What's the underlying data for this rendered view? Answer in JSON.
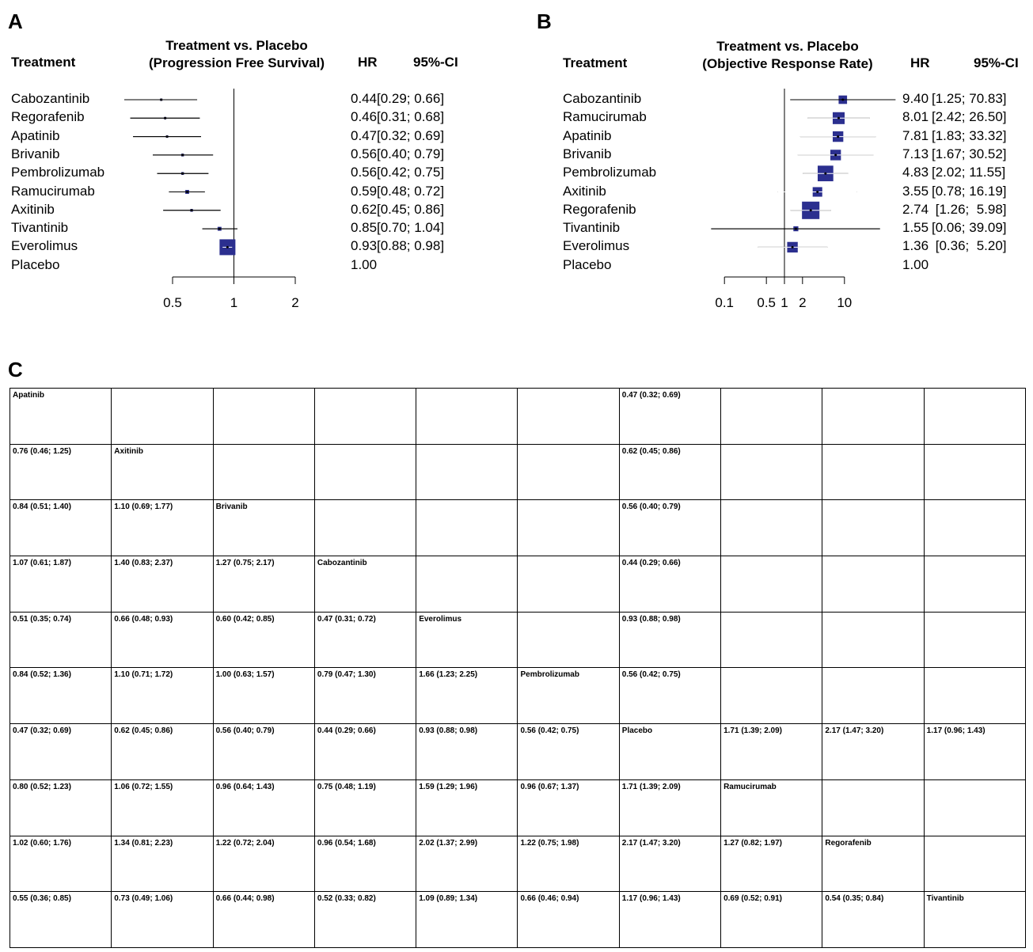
{
  "panels": {
    "A": {
      "letter": "A",
      "col_treatment": "Treatment",
      "col_title_line1": "Treatment vs. Placebo",
      "col_title_line2": "(Progression Free Survival)",
      "col_hr": "HR",
      "col_ci": "95%-CI"
    },
    "B": {
      "letter": "B",
      "col_treatment": "Treatment",
      "col_title_line1": "Treatment vs. Placebo",
      "col_title_line2": "(Objective Response Rate)",
      "col_hr": "HR",
      "col_ci": "95%-CI"
    },
    "C": {
      "letter": "C"
    }
  },
  "chart_data": [
    {
      "type": "forest",
      "scale": "log",
      "axis_ticks": [
        0.5,
        1,
        2
      ],
      "axis_tick_labels": [
        "0.5",
        "1",
        "2"
      ],
      "reference_line": 1,
      "rows": [
        {
          "name": "Cabozantinib",
          "est": 0.44,
          "lo": 0.29,
          "hi": 0.66,
          "weight": 0.02,
          "hr_text": "0.44",
          "ci_text": "[0.29; 0.66]"
        },
        {
          "name": "Regorafenib",
          "est": 0.46,
          "lo": 0.31,
          "hi": 0.68,
          "weight": 0.02,
          "hr_text": "0.46",
          "ci_text": "[0.31; 0.68]"
        },
        {
          "name": "Apatinib",
          "est": 0.47,
          "lo": 0.32,
          "hi": 0.69,
          "weight": 0.02,
          "hr_text": "0.47",
          "ci_text": "[0.32; 0.69]"
        },
        {
          "name": "Brivanib",
          "est": 0.56,
          "lo": 0.4,
          "hi": 0.79,
          "weight": 0.03,
          "hr_text": "0.56",
          "ci_text": "[0.40; 0.79]"
        },
        {
          "name": "Pembrolizumab",
          "est": 0.56,
          "lo": 0.42,
          "hi": 0.75,
          "weight": 0.03,
          "hr_text": "0.56",
          "ci_text": "[0.42; 0.75]"
        },
        {
          "name": "Ramucirumab",
          "est": 0.59,
          "lo": 0.48,
          "hi": 0.72,
          "weight": 0.06,
          "hr_text": "0.59",
          "ci_text": "[0.48; 0.72]"
        },
        {
          "name": "Axitinib",
          "est": 0.62,
          "lo": 0.45,
          "hi": 0.86,
          "weight": 0.03,
          "hr_text": "0.62",
          "ci_text": "[0.45; 0.86]"
        },
        {
          "name": "Tivantinib",
          "est": 0.85,
          "lo": 0.7,
          "hi": 1.04,
          "weight": 0.06,
          "hr_text": "0.85",
          "ci_text": "[0.70; 1.04]"
        },
        {
          "name": "Everolimus",
          "est": 0.93,
          "lo": 0.88,
          "hi": 0.98,
          "weight": 1.0,
          "hr_text": "0.93",
          "ci_text": "[0.88; 0.98]"
        },
        {
          "name": "Placebo",
          "est": null,
          "lo": null,
          "hi": null,
          "weight": 0,
          "hr_text": "1.00",
          "ci_text": ""
        }
      ]
    },
    {
      "type": "forest",
      "scale": "log",
      "axis_ticks": [
        0.1,
        0.5,
        1,
        2,
        10
      ],
      "axis_tick_labels": [
        "0.1",
        "0.5",
        "1",
        "2",
        "10"
      ],
      "reference_line": 1,
      "rows": [
        {
          "name": "Cabozantinib",
          "est": 9.4,
          "lo": 1.25,
          "hi": 70.83,
          "weight": 0.35,
          "hr_text": "9.40",
          "ci_text": "[1.25; 70.83]"
        },
        {
          "name": "Ramucirumab",
          "est": 8.01,
          "lo": 2.42,
          "hi": 26.5,
          "weight": 0.7,
          "hr_text": "8.01",
          "ci_text": "[2.42; 26.50]"
        },
        {
          "name": "Apatinib",
          "est": 7.81,
          "lo": 1.83,
          "hi": 33.32,
          "weight": 0.55,
          "hr_text": "7.81",
          "ci_text": "[1.83; 33.32]"
        },
        {
          "name": "Brivanib",
          "est": 7.13,
          "lo": 1.67,
          "hi": 30.52,
          "weight": 0.55,
          "hr_text": "7.13",
          "ci_text": "[1.67; 30.52]"
        },
        {
          "name": "Pembrolizumab",
          "est": 4.83,
          "lo": 2.02,
          "hi": 11.55,
          "weight": 1.2,
          "hr_text": "4.83",
          "ci_text": "[2.02; 11.55]"
        },
        {
          "name": "Axitinib",
          "est": 3.55,
          "lo": 0.78,
          "hi": 16.19,
          "weight": 0.45,
          "hr_text": "3.55",
          "ci_text": "[0.78; 16.19]"
        },
        {
          "name": "Regorafenib",
          "est": 2.74,
          "lo": 1.26,
          "hi": 5.98,
          "weight": 1.5,
          "hr_text": "2.74",
          "ci_text": " [1.26;  5.98]"
        },
        {
          "name": "Tivantinib",
          "est": 1.55,
          "lo": 0.06,
          "hi": 39.09,
          "weight": 0.12,
          "hr_text": "1.55",
          "ci_text": "[0.06; 39.09]"
        },
        {
          "name": "Everolimus",
          "est": 1.36,
          "lo": 0.36,
          "hi": 5.2,
          "weight": 0.55,
          "hr_text": "1.36",
          "ci_text": " [0.36;  5.20]"
        },
        {
          "name": "Placebo",
          "est": null,
          "lo": null,
          "hi": null,
          "weight": 0,
          "hr_text": "1.00",
          "ci_text": ""
        }
      ]
    },
    {
      "type": "table",
      "rows": [
        [
          "Apatinib",
          "",
          "",
          "",
          "",
          "",
          "0.47 (0.32; 0.69)",
          "",
          "",
          ""
        ],
        [
          "0.76 (0.46; 1.25)",
          "Axitinib",
          "",
          "",
          "",
          "",
          "0.62 (0.45; 0.86)",
          "",
          "",
          ""
        ],
        [
          "0.84 (0.51; 1.40)",
          "1.10 (0.69; 1.77)",
          "Brivanib",
          "",
          "",
          "",
          "0.56 (0.40; 0.79)",
          "",
          "",
          ""
        ],
        [
          "1.07 (0.61; 1.87)",
          "1.40 (0.83; 2.37)",
          "1.27 (0.75; 2.17)",
          "Cabozantinib",
          "",
          "",
          "0.44 (0.29; 0.66)",
          "",
          "",
          ""
        ],
        [
          "0.51 (0.35; 0.74)",
          "0.66 (0.48; 0.93)",
          "0.60 (0.42; 0.85)",
          "0.47 (0.31; 0.72)",
          "Everolimus",
          "",
          "0.93 (0.88; 0.98)",
          "",
          "",
          ""
        ],
        [
          "0.84 (0.52; 1.36)",
          "1.10 (0.71; 1.72)",
          "1.00 (0.63; 1.57)",
          "0.79 (0.47; 1.30)",
          "1.66 (1.23; 2.25)",
          "Pembrolizumab",
          "0.56 (0.42; 0.75)",
          "",
          "",
          ""
        ],
        [
          "0.47 (0.32; 0.69)",
          "0.62 (0.45; 0.86)",
          "0.56 (0.40; 0.79)",
          "0.44 (0.29; 0.66)",
          "0.93 (0.88; 0.98)",
          "0.56 (0.42; 0.75)",
          "Placebo",
          "1.71 (1.39; 2.09)",
          "2.17 (1.47; 3.20)",
          "1.17 (0.96; 1.43)"
        ],
        [
          "0.80 (0.52; 1.23)",
          "1.06 (0.72; 1.55)",
          "0.96 (0.64; 1.43)",
          "0.75 (0.48; 1.19)",
          "1.59 (1.29; 1.96)",
          "0.96 (0.67; 1.37)",
          "1.71 (1.39; 2.09)",
          "Ramucirumab",
          "",
          ""
        ],
        [
          "1.02 (0.60; 1.76)",
          "1.34 (0.81; 2.23)",
          "1.22 (0.72; 2.04)",
          "0.96 (0.54; 1.68)",
          "2.02 (1.37; 2.99)",
          "1.22 (0.75; 1.98)",
          "2.17 (1.47; 3.20)",
          "1.27 (0.82; 1.97)",
          "Regorafenib",
          ""
        ],
        [
          "0.55 (0.36; 0.85)",
          "0.73 (0.49; 1.06)",
          "0.66 (0.44; 0.98)",
          "0.52 (0.33; 0.82)",
          "1.09 (0.89; 1.34)",
          "0.66 (0.46; 0.94)",
          "1.17 (0.96; 1.43)",
          "0.69 (0.52; 0.91)",
          "0.54 (0.35; 0.84)",
          "Tivantinib"
        ]
      ]
    }
  ],
  "colors": {
    "marker": "#2b2f8f",
    "line": "#000000"
  }
}
